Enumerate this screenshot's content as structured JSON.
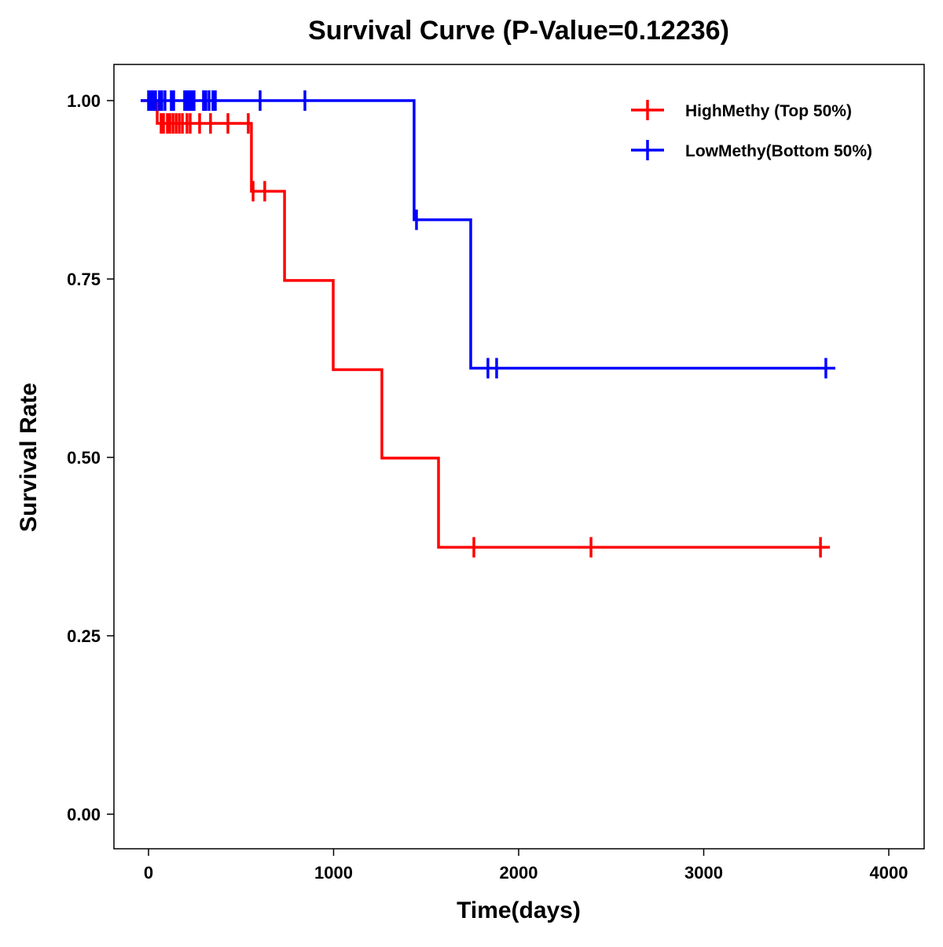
{
  "chart_data": {
    "type": "line",
    "subtype": "kaplan-meier step",
    "title": "Survival Curve (P-Value=0.12236)",
    "xlabel": "Time(days)",
    "ylabel": "Survival Rate",
    "xlim": [
      -190,
      4200
    ],
    "ylim": [
      -0.05,
      1.05
    ],
    "xticks": [
      0,
      1000,
      2000,
      3000,
      4000
    ],
    "xtick_labels": [
      "0",
      "1000",
      "2000",
      "3000",
      "4000"
    ],
    "yticks": [
      0,
      0.25,
      0.5,
      0.75,
      1.0
    ],
    "ytick_labels": [
      "0.00",
      "0.25",
      "0.50",
      "0.75",
      "1.00"
    ],
    "grid": false,
    "legend_position": "top-right",
    "series": [
      {
        "name": "HighMethy (Top 50%)",
        "color": "#ff0000",
        "steps": [
          [
            0,
            1.0
          ],
          [
            47,
            0.968
          ],
          [
            556,
            0.873
          ],
          [
            735,
            0.748
          ],
          [
            998,
            0.623
          ],
          [
            1261,
            0.499
          ],
          [
            1567,
            0.374
          ]
        ],
        "end": 3682,
        "censors": [
          [
            68,
            0.968
          ],
          [
            81,
            0.968
          ],
          [
            102,
            0.968
          ],
          [
            115,
            0.968
          ],
          [
            132,
            0.968
          ],
          [
            149,
            0.968
          ],
          [
            166,
            0.968
          ],
          [
            183,
            0.968
          ],
          [
            208,
            0.968
          ],
          [
            225,
            0.968
          ],
          [
            276,
            0.968
          ],
          [
            335,
            0.968
          ],
          [
            429,
            0.968
          ],
          [
            539,
            0.968
          ],
          [
            565,
            0.873
          ],
          [
            628,
            0.873
          ],
          [
            1758,
            0.374
          ],
          [
            2391,
            0.374
          ],
          [
            3631,
            0.374
          ]
        ]
      },
      {
        "name": "LowMethy(Bottom 50%)",
        "color": "#0000ff",
        "steps": [
          [
            0,
            1.0
          ],
          [
            1435,
            0.833
          ],
          [
            1741,
            0.625
          ]
        ],
        "end": 3711,
        "censors": [
          [
            0,
            1
          ],
          [
            13,
            1
          ],
          [
            25,
            1
          ],
          [
            38,
            1
          ],
          [
            59,
            1
          ],
          [
            72,
            1
          ],
          [
            89,
            1
          ],
          [
            123,
            1
          ],
          [
            136,
            1
          ],
          [
            195,
            1
          ],
          [
            208,
            1
          ],
          [
            221,
            1
          ],
          [
            234,
            1
          ],
          [
            246,
            1
          ],
          [
            297,
            1
          ],
          [
            310,
            1
          ],
          [
            327,
            1
          ],
          [
            348,
            1
          ],
          [
            361,
            1
          ],
          [
            603,
            1
          ],
          [
            845,
            1
          ],
          [
            1448,
            0.833
          ],
          [
            1834,
            0.625
          ],
          [
            1881,
            0.625
          ],
          [
            3660,
            0.625
          ]
        ]
      }
    ]
  }
}
